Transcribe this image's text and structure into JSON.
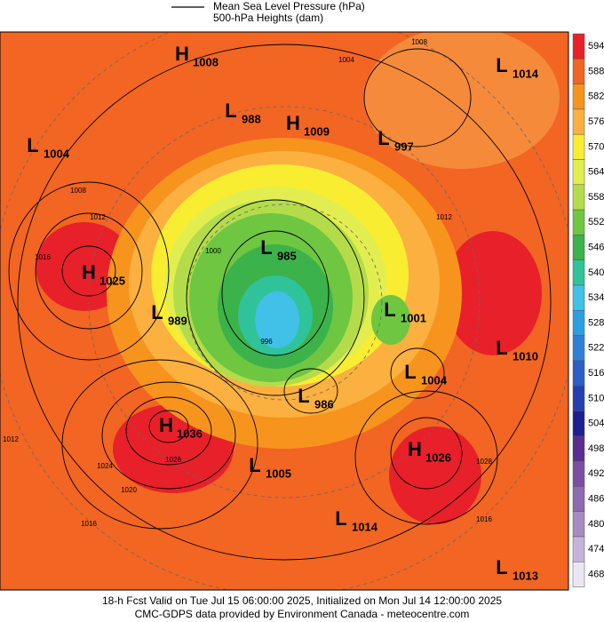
{
  "legend": {
    "mslp": "Mean Sea Level Pressure (hPa)",
    "heights": "500-hPa Heights (dam)"
  },
  "centers": [
    {
      "letter": "H",
      "value": 1008
    },
    {
      "letter": "L",
      "value": 988
    },
    {
      "letter": "H",
      "value": 1009
    },
    {
      "letter": "L",
      "value": 997
    },
    {
      "letter": "L",
      "value": 1014
    },
    {
      "letter": "L",
      "value": 1004
    },
    {
      "letter": "H",
      "value": 1025
    },
    {
      "letter": "L",
      "value": 989
    },
    {
      "letter": "L",
      "value": 985
    },
    {
      "letter": "L",
      "value": 1001
    },
    {
      "letter": "L",
      "value": 1010
    },
    {
      "letter": "L",
      "value": 1004
    },
    {
      "letter": "L",
      "value": 986
    },
    {
      "letter": "H",
      "value": 1036
    },
    {
      "letter": "H",
      "value": 1026
    },
    {
      "letter": "L",
      "value": 1005
    },
    {
      "letter": "L",
      "value": 1014
    },
    {
      "letter": "L",
      "value": 1013
    }
  ],
  "isobar_labels": [
    1008,
    1004,
    1008,
    1012,
    1016,
    1012,
    1012,
    1024,
    1028,
    1020,
    1016,
    1016,
    1028,
    996,
    1000
  ],
  "colorbar": {
    "levels": [
      594,
      588,
      582,
      576,
      570,
      564,
      558,
      552,
      546,
      540,
      534,
      528,
      522,
      516,
      510,
      504,
      498,
      492,
      486,
      480,
      474,
      468
    ],
    "colors": [
      "#e8202a",
      "#f26522",
      "#f7941d",
      "#fbb040",
      "#f9ed32",
      "#e2ee50",
      "#b4dc4a",
      "#6ec641",
      "#3cb24a",
      "#30c39a",
      "#41c0e8",
      "#2ba0e0",
      "#2f7fd8",
      "#2a5fc8",
      "#263fb0",
      "#1d2090",
      "#5b2d90",
      "#7a4ea0",
      "#8e6ab0",
      "#a58cc0",
      "#c5b4d8",
      "#ece6f2"
    ]
  },
  "footer": {
    "line1": "18-h Fcst Valid on Tue Jul 15 06:00:00 2025, Initialized on Mon Jul 14 12:00:00 2025",
    "line2": "CMC-GDPS data provided by Environment Canada - meteocentre.com"
  }
}
